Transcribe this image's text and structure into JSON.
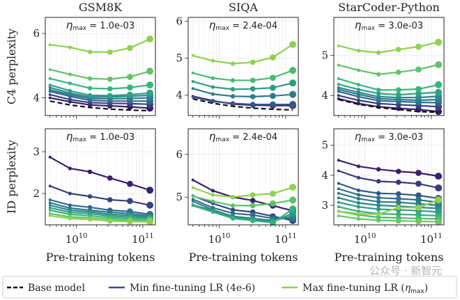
{
  "colors": {
    "min_lr": "#3b1f6e",
    "mid_lr": "#2a8a8c",
    "max_lr": "#8fd14f",
    "base": "#111111"
  },
  "legend": {
    "position": "bottom",
    "items": [
      {
        "label": "Base model",
        "style": "dashed",
        "color": "#111111"
      },
      {
        "label": "Min fine-tuning LR (4e-6)",
        "style": "solid",
        "color": "#3b4a8c"
      },
      {
        "label": "Max fine-tuning LR (",
        "eta": "η",
        "sub": "max",
        "close": ")",
        "style": "solid",
        "color": "#8fd14f"
      }
    ]
  },
  "watermark": "公众号 · 新智元",
  "chart_data": [
    {
      "type": "line",
      "title": "GSM8K",
      "ylabel": "C4 perplexity",
      "xlabel": "",
      "xscale": "log",
      "annotation": {
        "eta": "η",
        "sub": "max",
        "value": " = 1.0e-03"
      },
      "x": [
        4000000000.0,
        8000000000.0,
        16000000000.0,
        32000000000.0,
        64000000000.0,
        128000000000.0
      ],
      "xlim": [
        3400000000.0,
        155000000000.0
      ],
      "xticks": [
        {
          "v": 10000000000.0,
          "base": "10",
          "exp": "10"
        },
        {
          "v": 100000000000.0,
          "base": "10",
          "exp": "11"
        }
      ],
      "show_xticklabels": false,
      "ylim": [
        3.45,
        6.5
      ],
      "yticks": [
        4,
        6
      ],
      "grid": true,
      "base": [
        3.9,
        3.78,
        3.7,
        3.65,
        3.62,
        3.6
      ],
      "series": [
        [
          4.0,
          3.88,
          3.78,
          3.75,
          3.72,
          3.68
        ],
        [
          4.1,
          3.95,
          3.85,
          3.83,
          3.82,
          3.8
        ],
        [
          4.2,
          4.05,
          3.92,
          3.9,
          3.9,
          3.9
        ],
        [
          4.25,
          4.1,
          3.98,
          3.97,
          3.98,
          4.0
        ],
        [
          4.32,
          4.15,
          4.03,
          4.03,
          4.05,
          4.08
        ],
        [
          4.4,
          4.22,
          4.08,
          4.07,
          4.1,
          4.15
        ],
        [
          4.6,
          4.45,
          4.3,
          4.28,
          4.32,
          4.4
        ],
        [
          4.88,
          4.73,
          4.6,
          4.58,
          4.65,
          4.83
        ],
        [
          5.65,
          5.57,
          5.43,
          5.42,
          5.55,
          5.83
        ]
      ]
    },
    {
      "type": "line",
      "title": "SIQA",
      "ylabel": "",
      "xlabel": "",
      "xscale": "log",
      "annotation": {
        "eta": "η",
        "sub": "max",
        "value": " = 2.4e-04"
      },
      "x": [
        4000000000.0,
        8000000000.0,
        16000000000.0,
        32000000000.0,
        64000000000.0,
        128000000000.0
      ],
      "xlim": [
        3400000000.0,
        155000000000.0
      ],
      "xticks": [
        {
          "v": 10000000000.0,
          "base": "10",
          "exp": "10"
        },
        {
          "v": 100000000000.0,
          "base": "10",
          "exp": "11"
        }
      ],
      "show_xticklabels": false,
      "ylim": [
        3.45,
        6.1
      ],
      "yticks": [
        4,
        5,
        6
      ],
      "grid": true,
      "base": [
        3.9,
        3.78,
        3.7,
        3.65,
        3.62,
        3.6
      ],
      "series": [
        [
          3.97,
          3.85,
          3.76,
          3.73,
          3.72,
          3.72
        ],
        [
          3.95,
          3.83,
          3.78,
          3.75,
          3.75,
          3.75
        ],
        [
          4.18,
          4.03,
          3.97,
          3.96,
          3.98,
          4.02
        ],
        [
          4.37,
          4.22,
          4.16,
          4.17,
          4.2,
          4.33
        ],
        [
          4.6,
          4.46,
          4.4,
          4.4,
          4.47,
          4.67
        ],
        [
          5.07,
          4.93,
          4.85,
          4.89,
          5.02,
          5.37
        ]
      ]
    },
    {
      "type": "line",
      "title": "StarCoder-Python",
      "ylabel": "",
      "xlabel": "",
      "xscale": "log",
      "annotation": {
        "eta": "η",
        "sub": "max",
        "value": " = 3.0e-03"
      },
      "x": [
        4000000000.0,
        8000000000.0,
        16000000000.0,
        32000000000.0,
        64000000000.0,
        128000000000.0
      ],
      "xlim": [
        3400000000.0,
        155000000000.0
      ],
      "xticks": [
        {
          "v": 10000000000.0,
          "base": "10",
          "exp": "10"
        },
        {
          "v": 100000000000.0,
          "base": "10",
          "exp": "11"
        }
      ],
      "show_xticklabels": false,
      "ylim": [
        3.5,
        5.95
      ],
      "yticks": [
        4,
        5
      ],
      "grid": true,
      "base": [
        3.9,
        3.78,
        3.7,
        3.65,
        3.6,
        3.58
      ],
      "series": [
        [
          3.92,
          3.8,
          3.72,
          3.68,
          3.65,
          3.6
        ],
        [
          4.0,
          3.88,
          3.8,
          3.77,
          3.75,
          3.72
        ],
        [
          4.1,
          3.97,
          3.87,
          3.85,
          3.83,
          3.82
        ],
        [
          4.15,
          4.03,
          3.92,
          3.9,
          3.88,
          3.9
        ],
        [
          4.2,
          4.08,
          3.97,
          3.95,
          3.95,
          3.98
        ],
        [
          4.28,
          4.15,
          4.05,
          4.02,
          4.05,
          4.08
        ],
        [
          4.42,
          4.27,
          4.14,
          4.14,
          4.16,
          4.27
        ],
        [
          4.76,
          4.63,
          4.53,
          4.58,
          4.65,
          4.77
        ],
        [
          5.24,
          5.12,
          5.07,
          5.15,
          5.22,
          5.33
        ]
      ]
    },
    {
      "type": "line",
      "title": "",
      "ylabel": "ID perplexity",
      "xlabel": "Pre-training tokens",
      "xscale": "log",
      "annotation": {
        "eta": "η",
        "sub": "max",
        "value": " = 1.0e-03"
      },
      "x": [
        4000000000.0,
        8000000000.0,
        16000000000.0,
        32000000000.0,
        64000000000.0,
        128000000000.0
      ],
      "xlim": [
        3400000000.0,
        155000000000.0
      ],
      "xticks": [
        {
          "v": 10000000000.0,
          "base": "10",
          "exp": "10"
        },
        {
          "v": 100000000000.0,
          "base": "10",
          "exp": "11"
        }
      ],
      "show_xticklabels": true,
      "ylim": [
        1.25,
        3.55
      ],
      "yticks": [
        2,
        3
      ],
      "grid": true,
      "series": [
        [
          2.87,
          2.6,
          2.52,
          2.37,
          2.23,
          2.08
        ],
        [
          2.18,
          2.0,
          1.93,
          1.85,
          1.82,
          1.72
        ],
        [
          1.85,
          1.72,
          1.67,
          1.6,
          1.57,
          1.5
        ],
        [
          1.78,
          1.65,
          1.6,
          1.55,
          1.52,
          1.46
        ],
        [
          1.72,
          1.6,
          1.56,
          1.5,
          1.48,
          1.43
        ],
        [
          1.66,
          1.55,
          1.52,
          1.46,
          1.44,
          1.4
        ],
        [
          1.6,
          1.5,
          1.47,
          1.42,
          1.4,
          1.38
        ],
        [
          1.52,
          1.44,
          1.42,
          1.38,
          1.36,
          1.35
        ],
        [
          1.47,
          1.4,
          1.38,
          1.34,
          1.33,
          1.32
        ]
      ]
    },
    {
      "type": "line",
      "title": "",
      "ylabel": "",
      "xlabel": "Pre-training tokens",
      "xscale": "log",
      "annotation": {
        "eta": "η",
        "sub": "max",
        "value": " = 2.4e-04"
      },
      "x": [
        4000000000.0,
        8000000000.0,
        16000000000.0,
        32000000000.0,
        64000000000.0,
        128000000000.0
      ],
      "xlim": [
        3400000000.0,
        155000000000.0
      ],
      "xticks": [
        {
          "v": 10000000000.0,
          "base": "10",
          "exp": "10"
        },
        {
          "v": 100000000000.0,
          "base": "10",
          "exp": "11"
        }
      ],
      "show_xticklabels": true,
      "ylim": [
        4.35,
        6.6
      ],
      "yticks": [
        5,
        6
      ],
      "grid": true,
      "series": [
        [
          5.4,
          5.15,
          5.0,
          4.92,
          4.8,
          4.68
        ],
        [
          5.03,
          4.85,
          4.7,
          4.65,
          4.55,
          4.45
        ],
        [
          4.95,
          4.75,
          4.62,
          4.58,
          4.5,
          4.5
        ],
        [
          4.9,
          4.7,
          4.55,
          4.5,
          4.45,
          4.55
        ],
        [
          4.82,
          4.68,
          4.52,
          4.48,
          4.42,
          4.62
        ],
        [
          4.8,
          4.65,
          4.5,
          4.45,
          4.4,
          4.72
        ],
        [
          5.02,
          4.9,
          4.8,
          4.8,
          4.85,
          4.93
        ],
        [
          5.22,
          5.05,
          5.0,
          5.05,
          5.08,
          5.23
        ]
      ]
    },
    {
      "type": "line",
      "title": "",
      "ylabel": "",
      "xlabel": "Pre-training tokens",
      "xscale": "log",
      "annotation": {
        "eta": "η",
        "sub": "max",
        "value": " = 3.0e-03"
      },
      "x": [
        4000000000.0,
        8000000000.0,
        16000000000.0,
        32000000000.0,
        64000000000.0,
        128000000000.0
      ],
      "xlim": [
        3400000000.0,
        155000000000.0
      ],
      "xticks": [
        {
          "v": 10000000000.0,
          "base": "10",
          "exp": "10"
        },
        {
          "v": 100000000000.0,
          "base": "10",
          "exp": "11"
        }
      ],
      "show_xticklabels": true,
      "ylim": [
        2.35,
        5.55
      ],
      "yticks": [
        3,
        4,
        5
      ],
      "grid": true,
      "series": [
        [
          4.5,
          4.3,
          4.2,
          4.13,
          4.08,
          3.97
        ],
        [
          4.15,
          3.92,
          3.8,
          3.77,
          3.72,
          3.58
        ],
        [
          3.73,
          3.5,
          3.4,
          3.38,
          3.33,
          3.23
        ],
        [
          3.55,
          3.35,
          3.25,
          3.22,
          3.18,
          3.1
        ],
        [
          3.4,
          3.22,
          3.12,
          3.1,
          3.05,
          3.0
        ],
        [
          3.25,
          3.08,
          3.0,
          2.97,
          2.93,
          2.9
        ],
        [
          3.1,
          2.95,
          2.87,
          2.85,
          2.82,
          2.78
        ],
        [
          2.95,
          2.8,
          2.72,
          2.7,
          2.68,
          2.65
        ],
        [
          2.8,
          2.68,
          2.6,
          2.58,
          2.56,
          2.55
        ],
        [
          2.65,
          2.55,
          2.5,
          2.48,
          2.47,
          2.45
        ],
        [
          2.8,
          2.72,
          2.7,
          2.93,
          2.92,
          3.18
        ]
      ]
    }
  ]
}
